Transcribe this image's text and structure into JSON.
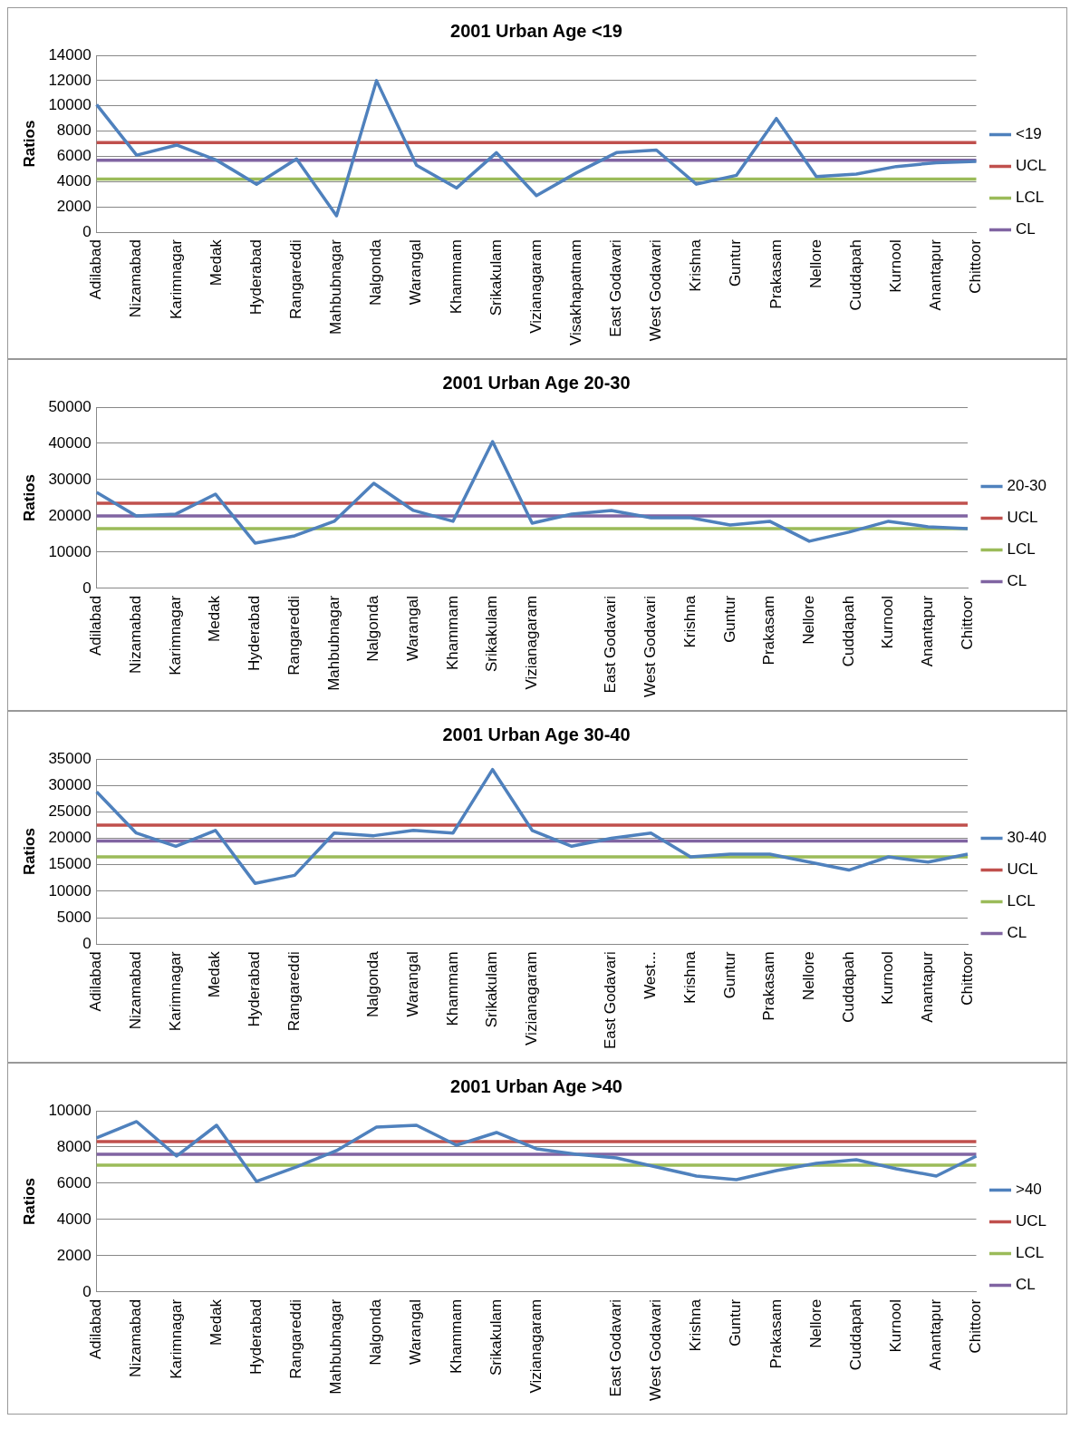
{
  "chart_data": [
    {
      "type": "line",
      "title": "2001 Urban Age <19",
      "ylabel": "Ratios",
      "categories": [
        "Adilabad",
        "Nizamabad",
        "Karimnagar",
        "Medak",
        "Hyderabad",
        "Rangareddi",
        "Mahbubnagar",
        "Nalgonda",
        "Warangal",
        "Khammam",
        "Srikakulam",
        "Vizianagaram",
        "Visakhapatnam",
        "East Godavari",
        "West Godavari",
        "Krishna",
        "Guntur",
        "Prakasam",
        "Nellore",
        "Cuddapah",
        "Kurnool",
        "Anantapur",
        "Chittoor"
      ],
      "series": [
        {
          "name": "<19",
          "color": "#4f81bd",
          "values": [
            10100,
            6100,
            6900,
            5700,
            3800,
            5800,
            1300,
            12000,
            5300,
            3500,
            6300,
            2900,
            4700,
            6300,
            6500,
            3800,
            4500,
            9000,
            4400,
            4600,
            5200,
            5500,
            5600
          ]
        },
        {
          "name": "UCL",
          "color": "#c0504d",
          "values": [
            7100,
            7100,
            7100,
            7100,
            7100,
            7100,
            7100,
            7100,
            7100,
            7100,
            7100,
            7100,
            7100,
            7100,
            7100,
            7100,
            7100,
            7100,
            7100,
            7100,
            7100,
            7100,
            7100
          ]
        },
        {
          "name": "LCL",
          "color": "#9bbb59",
          "values": [
            4200,
            4200,
            4200,
            4200,
            4200,
            4200,
            4200,
            4200,
            4200,
            4200,
            4200,
            4200,
            4200,
            4200,
            4200,
            4200,
            4200,
            4200,
            4200,
            4200,
            4200,
            4200,
            4200
          ]
        },
        {
          "name": "CL",
          "color": "#8064a2",
          "values": [
            5700,
            5700,
            5700,
            5700,
            5700,
            5700,
            5700,
            5700,
            5700,
            5700,
            5700,
            5700,
            5700,
            5700,
            5700,
            5700,
            5700,
            5700,
            5700,
            5700,
            5700,
            5700,
            5700
          ]
        }
      ],
      "ylim": [
        0,
        14000
      ],
      "yticks": [
        0,
        2000,
        4000,
        6000,
        8000,
        10000,
        12000,
        14000
      ],
      "grid": "y",
      "legend": "right",
      "marker": "none"
    },
    {
      "type": "line",
      "title": "2001 Urban Age 20-30",
      "ylabel": "Ratios",
      "categories": [
        "Adilabad",
        "Nizamabad",
        "Karimnagar",
        "Medak",
        "Hyderabad",
        "Rangareddi",
        "Mahbubnagar",
        "Nalgonda",
        "Warangal",
        "Khammam",
        "Srikakulam",
        "Vizianagaram",
        null,
        "East Godavari",
        "West Godavari",
        "Krishna",
        "Guntur",
        "Prakasam",
        "Nellore",
        "Cuddapah",
        "Kurnool",
        "Anantapur",
        "Chittoor"
      ],
      "series": [
        {
          "name": "20-30",
          "color": "#4f81bd",
          "values": [
            26500,
            20000,
            20500,
            26000,
            12500,
            14500,
            18500,
            29000,
            21500,
            18500,
            40500,
            18000,
            20500,
            21500,
            19500,
            19500,
            17500,
            18500,
            13000,
            15500,
            18500,
            17000,
            16500
          ]
        },
        {
          "name": "UCL",
          "color": "#c0504d",
          "values": [
            23500,
            23500,
            23500,
            23500,
            23500,
            23500,
            23500,
            23500,
            23500,
            23500,
            23500,
            23500,
            23500,
            23500,
            23500,
            23500,
            23500,
            23500,
            23500,
            23500,
            23500,
            23500,
            23500
          ]
        },
        {
          "name": "LCL",
          "color": "#9bbb59",
          "values": [
            16500,
            16500,
            16500,
            16500,
            16500,
            16500,
            16500,
            16500,
            16500,
            16500,
            16500,
            16500,
            16500,
            16500,
            16500,
            16500,
            16500,
            16500,
            16500,
            16500,
            16500,
            16500,
            16500
          ]
        },
        {
          "name": "CL",
          "color": "#8064a2",
          "values": [
            20000,
            20000,
            20000,
            20000,
            20000,
            20000,
            20000,
            20000,
            20000,
            20000,
            20000,
            20000,
            20000,
            20000,
            20000,
            20000,
            20000,
            20000,
            20000,
            20000,
            20000,
            20000,
            20000
          ]
        }
      ],
      "ylim": [
        0,
        50000
      ],
      "yticks": [
        0,
        10000,
        20000,
        30000,
        40000,
        50000
      ],
      "grid": "y",
      "legend": "right",
      "marker": "none"
    },
    {
      "type": "line",
      "title": "2001 Urban Age 30-40",
      "ylabel": "Ratios",
      "categories": [
        "Adilabad",
        "Nizamabad",
        "Karimnagar",
        "Medak",
        "Hyderabad",
        "Rangareddi",
        null,
        "Nalgonda",
        "Warangal",
        "Khammam",
        "Srikakulam",
        "Vizianagaram",
        null,
        "East Godavari",
        "West...",
        "Krishna",
        "Guntur",
        "Prakasam",
        "Nellore",
        "Cuddapah",
        "Kurnool",
        "Anantapur",
        "Chittoor"
      ],
      "series": [
        {
          "name": "30-40",
          "color": "#4f81bd",
          "values": [
            28800,
            21000,
            18500,
            21500,
            11500,
            13000,
            21000,
            20500,
            21500,
            21000,
            33000,
            21500,
            18500,
            20000,
            21000,
            16500,
            17000,
            17000,
            15500,
            14000,
            16500,
            15500,
            17000
          ]
        },
        {
          "name": "UCL",
          "color": "#c0504d",
          "values": [
            22500,
            22500,
            22500,
            22500,
            22500,
            22500,
            22500,
            22500,
            22500,
            22500,
            22500,
            22500,
            22500,
            22500,
            22500,
            22500,
            22500,
            22500,
            22500,
            22500,
            22500,
            22500,
            22500
          ]
        },
        {
          "name": "LCL",
          "color": "#9bbb59",
          "values": [
            16500,
            16500,
            16500,
            16500,
            16500,
            16500,
            16500,
            16500,
            16500,
            16500,
            16500,
            16500,
            16500,
            16500,
            16500,
            16500,
            16500,
            16500,
            16500,
            16500,
            16500,
            16500,
            16500
          ]
        },
        {
          "name": "CL",
          "color": "#8064a2",
          "values": [
            19500,
            19500,
            19500,
            19500,
            19500,
            19500,
            19500,
            19500,
            19500,
            19500,
            19500,
            19500,
            19500,
            19500,
            19500,
            19500,
            19500,
            19500,
            19500,
            19500,
            19500,
            19500,
            19500
          ]
        }
      ],
      "ylim": [
        0,
        35000
      ],
      "yticks": [
        0,
        5000,
        10000,
        15000,
        20000,
        25000,
        30000,
        35000
      ],
      "grid": "y",
      "legend": "right",
      "marker": "none"
    },
    {
      "type": "line",
      "title": "2001 Urban Age >40",
      "ylabel": "Ratios",
      "categories": [
        "Adilabad",
        "Nizamabad",
        "Karimnagar",
        "Medak",
        "Hyderabad",
        "Rangareddi",
        "Mahbubnagar",
        "Nalgonda",
        "Warangal",
        "Khammam",
        "Srikakulam",
        "Vizianagaram",
        null,
        "East Godavari",
        "West Godavari",
        "Krishna",
        "Guntur",
        "Prakasam",
        "Nellore",
        "Cuddapah",
        "Kurnool",
        "Anantapur",
        "Chittoor"
      ],
      "series": [
        {
          "name": ">40",
          "color": "#4f81bd",
          "values": [
            8500,
            9400,
            7500,
            9200,
            6100,
            6900,
            7800,
            9100,
            9200,
            8100,
            8800,
            7900,
            7600,
            7400,
            6900,
            6400,
            6200,
            6700,
            7100,
            7300,
            6800,
            6400,
            7500
          ]
        },
        {
          "name": "UCL",
          "color": "#c0504d",
          "values": [
            8300,
            8300,
            8300,
            8300,
            8300,
            8300,
            8300,
            8300,
            8300,
            8300,
            8300,
            8300,
            8300,
            8300,
            8300,
            8300,
            8300,
            8300,
            8300,
            8300,
            8300,
            8300,
            8300
          ]
        },
        {
          "name": "LCL",
          "color": "#9bbb59",
          "values": [
            7000,
            7000,
            7000,
            7000,
            7000,
            7000,
            7000,
            7000,
            7000,
            7000,
            7000,
            7000,
            7000,
            7000,
            7000,
            7000,
            7000,
            7000,
            7000,
            7000,
            7000,
            7000,
            7000
          ]
        },
        {
          "name": "CL",
          "color": "#8064a2",
          "values": [
            7600,
            7600,
            7600,
            7600,
            7600,
            7600,
            7600,
            7600,
            7600,
            7600,
            7600,
            7600,
            7600,
            7600,
            7600,
            7600,
            7600,
            7600,
            7600,
            7600,
            7600,
            7600,
            7600
          ]
        }
      ],
      "ylim": [
        0,
        10000
      ],
      "yticks": [
        0,
        2000,
        4000,
        6000,
        8000,
        10000
      ],
      "grid": "y",
      "legend": "right",
      "marker": "none"
    }
  ]
}
